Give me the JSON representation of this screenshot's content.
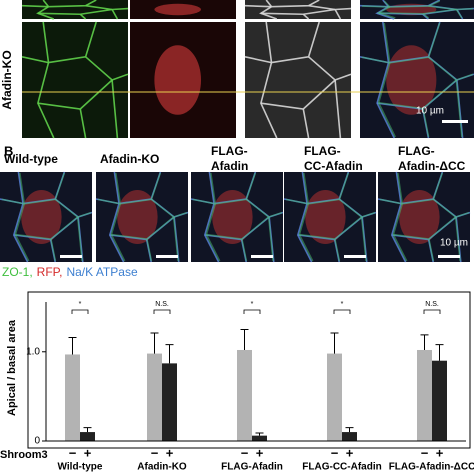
{
  "panel_a": {
    "row_label": "Afadin-KO",
    "scale_bar": "10 µm"
  },
  "panel_b": {
    "label": "B",
    "columns": [
      "Wild-type",
      "Afadin-KO",
      "FLAG-\nAfadin",
      "FLAG-\nCC-Afadin",
      "FLAG-\nAfadin-ΔCC"
    ],
    "scale_bar": "10 µm",
    "legend": [
      {
        "text": "ZO-1,",
        "color": "#3fbf3f"
      },
      {
        "text": "RFP,",
        "color": "#d42a2a"
      },
      {
        "text": "Na/K ATPase",
        "color": "#3d7fd0"
      }
    ]
  },
  "chart_data": {
    "type": "bar",
    "y_label": "Apical / basal area",
    "x_label": "Shroom3",
    "categories": [
      "Wild-type",
      "Afadin-KO",
      "FLAG-Afadin",
      "FLAG-CC-Afadin",
      "FLAG-Afadin-ΔCC"
    ],
    "significance": [
      "*",
      "N.S.",
      "*",
      "*",
      "N.S."
    ],
    "series": [
      {
        "name": "−",
        "color": "#b3b3b3",
        "values": [
          0.97,
          0.98,
          1.02,
          0.98,
          1.02
        ],
        "errors": [
          0.19,
          0.23,
          0.23,
          0.23,
          0.17
        ]
      },
      {
        "name": "+",
        "color": "#222222",
        "values": [
          0.1,
          0.87,
          0.06,
          0.1,
          0.9
        ],
        "errors": [
          0.05,
          0.21,
          0.03,
          0.05,
          0.18
        ]
      }
    ],
    "ylim": [
      0,
      1.67
    ],
    "yticks": [
      0,
      {
        "value": 1,
        "label": "1.0"
      }
    ]
  }
}
